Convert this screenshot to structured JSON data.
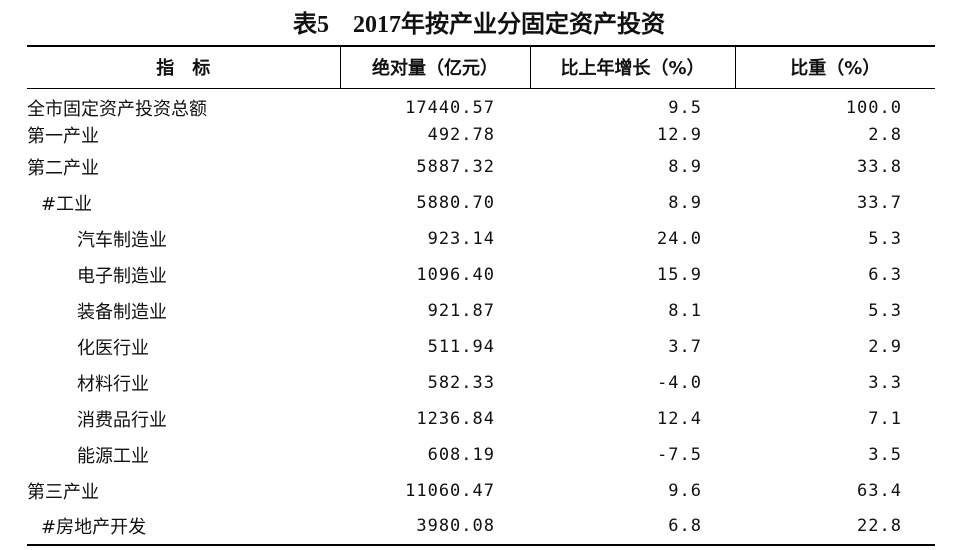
{
  "title": "表5　2017年按产业分固定资产投资",
  "table": {
    "header": [
      "指　标",
      "绝对量（亿元）",
      "比上年增长（%）",
      "比重（%）"
    ],
    "rows": [
      [
        "全市固定资产投资总额",
        "17440.57",
        "9.5",
        "100.0"
      ],
      [
        "第一产业",
        "492.78",
        "12.9",
        "2.8"
      ],
      [
        "第二产业",
        "5887.32",
        "8.9",
        "33.8"
      ],
      [
        "#工业",
        "5880.70",
        "8.9",
        "33.7"
      ],
      [
        "汽车制造业",
        "923.14",
        "24.0",
        "5.3"
      ],
      [
        "电子制造业",
        "1096.40",
        "15.9",
        "6.3"
      ],
      [
        "装备制造业",
        "921.87",
        "8.1",
        "5.3"
      ],
      [
        "化医行业",
        "511.94",
        "3.7",
        "2.9"
      ],
      [
        "材料行业",
        "582.33",
        "-4.0",
        "3.3"
      ],
      [
        "消费品行业",
        "1236.84",
        "12.4",
        "7.1"
      ],
      [
        "能源工业",
        "608.19",
        "-7.5",
        "3.5"
      ],
      [
        "第三产业",
        "11060.47",
        "9.6",
        "63.4"
      ],
      [
        "#房地产开发",
        "3980.08",
        "6.8",
        "22.8"
      ]
    ]
  }
}
